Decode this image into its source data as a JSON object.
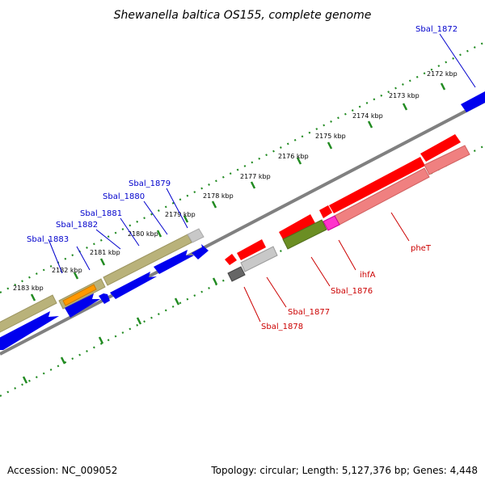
{
  "title": "Shewanella baltica OS155, complete genome",
  "accession": "Accession: NC_009052",
  "topology": "Topology: circular; Length: 5,127,376 bp; Genes: 4,448",
  "colors": {
    "forward_label": "#0000cc",
    "reverse_label": "#cc0000",
    "tick": "#228b22",
    "backbone": "#808080"
  },
  "ticks": [
    "2172 kbp",
    "2173 kbp",
    "2174 kbp",
    "2175 kbp",
    "2176 kbp",
    "2177 kbp",
    "2178 kbp",
    "2179 kbp",
    "2180 kbp",
    "2181 kbp",
    "2182 kbp",
    "2183 kbp"
  ],
  "gene_labels": {
    "forward": [
      "Sbal_1872",
      "Sbal_1879",
      "Sbal_1880",
      "Sbal_1881",
      "Sbal_1882",
      "Sbal_1883"
    ],
    "reverse": [
      "pheT",
      "ihfA",
      "Sbal_1876",
      "Sbal_1877",
      "Sbal_1878"
    ]
  }
}
